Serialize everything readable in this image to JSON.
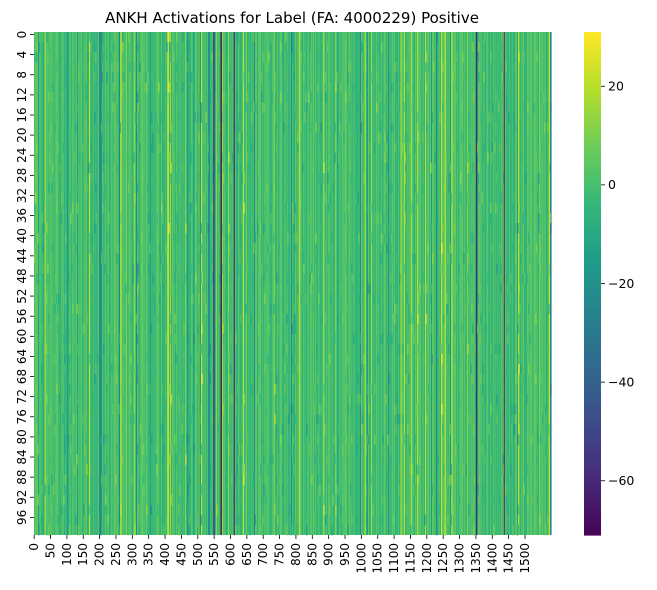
{
  "chart_data": {
    "type": "heatmap",
    "title": "ANKH Activations for Label (FA: 4000229) Positive",
    "xlabel": "",
    "ylabel": "",
    "colormap": "viridis",
    "n_rows": 100,
    "n_cols": 1580,
    "x_ticks": [
      0,
      50,
      100,
      150,
      200,
      250,
      300,
      350,
      400,
      450,
      500,
      550,
      600,
      650,
      700,
      750,
      800,
      850,
      900,
      950,
      1000,
      1050,
      1100,
      1150,
      1200,
      1250,
      1300,
      1350,
      1400,
      1450,
      1500
    ],
    "y_ticks": [
      0,
      4,
      8,
      12,
      16,
      20,
      24,
      28,
      32,
      36,
      40,
      44,
      48,
      52,
      56,
      60,
      64,
      68,
      72,
      76,
      80,
      84,
      88,
      92,
      96
    ],
    "color_range": [
      -71,
      31
    ],
    "colorbar_ticks": [
      20,
      0,
      -20,
      -40,
      -60
    ],
    "colorbar_tick_labels": [
      "20",
      "0",
      "−20",
      "−40",
      "−60"
    ],
    "typical_value": 0,
    "notable_columns": [
      {
        "col": 200,
        "value": -35
      },
      {
        "col": 548,
        "value": -60
      },
      {
        "col": 570,
        "value": -68
      },
      {
        "col": 610,
        "value": -55
      },
      {
        "col": 1350,
        "value": -60
      },
      {
        "col": 1435,
        "value": -55
      },
      {
        "col": 810,
        "value": 20
      },
      {
        "col": 1010,
        "value": 18
      },
      {
        "col": 1255,
        "value": 20
      },
      {
        "col": 1120,
        "value": 16
      }
    ]
  }
}
